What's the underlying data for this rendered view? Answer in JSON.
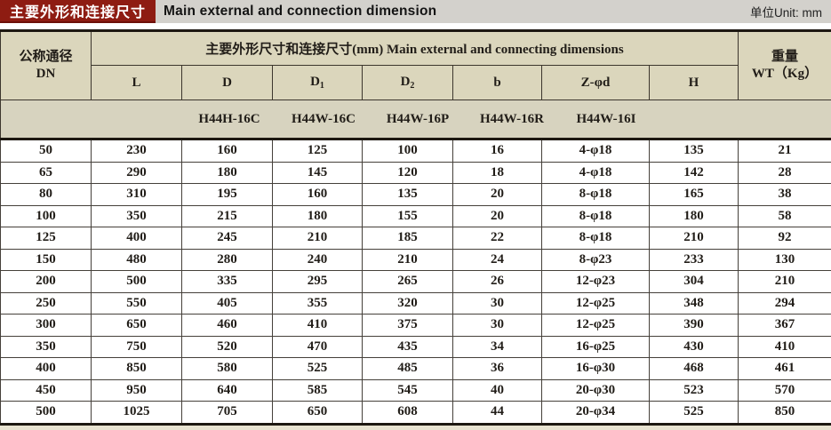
{
  "header": {
    "badge": "主要外形和连接尺寸",
    "title": "Main external and connection dimension",
    "unit": "单位Unit: mm"
  },
  "colors": {
    "badge_red": "#8e1c12",
    "titlebar_gray": "#d3d1cc",
    "header_beige": "#dbd6bc",
    "models_band": "#d7d3bf",
    "row_white": "#ffffff"
  },
  "table": {
    "dn_header": {
      "line1": "公称通径",
      "line2": "DN"
    },
    "group_header": "主要外形尺寸和连接尺寸(mm) Main external and connecting dimensions",
    "weight_header": {
      "line1": "重量",
      "line2": "WT（Kg）"
    },
    "columns": [
      {
        "key": "l",
        "label": "L"
      },
      {
        "key": "d",
        "label": "D"
      },
      {
        "key": "d1",
        "label": "D",
        "sub": "1"
      },
      {
        "key": "d2",
        "label": "D",
        "sub": "2"
      },
      {
        "key": "b",
        "label": "b"
      },
      {
        "key": "z-phi-d",
        "label": "Z-φd"
      },
      {
        "key": "h",
        "label": "H"
      }
    ],
    "models": [
      "H44H-16C",
      "H44W-16C",
      "H44W-16P",
      "H44W-16R",
      "H44W-16I"
    ],
    "rows": [
      [
        "50",
        "230",
        "160",
        "125",
        "100",
        "16",
        "4-φ18",
        "135",
        "21"
      ],
      [
        "65",
        "290",
        "180",
        "145",
        "120",
        "18",
        "4-φ18",
        "142",
        "28"
      ],
      [
        "80",
        "310",
        "195",
        "160",
        "135",
        "20",
        "8-φ18",
        "165",
        "38"
      ],
      [
        "100",
        "350",
        "215",
        "180",
        "155",
        "20",
        "8-φ18",
        "180",
        "58"
      ],
      [
        "125",
        "400",
        "245",
        "210",
        "185",
        "22",
        "8-φ18",
        "210",
        "92"
      ],
      [
        "150",
        "480",
        "280",
        "240",
        "210",
        "24",
        "8-φ23",
        "233",
        "130"
      ],
      [
        "200",
        "500",
        "335",
        "295",
        "265",
        "26",
        "12-φ23",
        "304",
        "210"
      ],
      [
        "250",
        "550",
        "405",
        "355",
        "320",
        "30",
        "12-φ25",
        "348",
        "294"
      ],
      [
        "300",
        "650",
        "460",
        "410",
        "375",
        "30",
        "12-φ25",
        "390",
        "367"
      ],
      [
        "350",
        "750",
        "520",
        "470",
        "435",
        "34",
        "16-φ25",
        "430",
        "410"
      ],
      [
        "400",
        "850",
        "580",
        "525",
        "485",
        "36",
        "16-φ30",
        "468",
        "461"
      ],
      [
        "450",
        "950",
        "640",
        "585",
        "545",
        "40",
        "20-φ30",
        "523",
        "570"
      ],
      [
        "500",
        "1025",
        "705",
        "650",
        "608",
        "44",
        "20-φ34",
        "525",
        "850"
      ]
    ]
  }
}
